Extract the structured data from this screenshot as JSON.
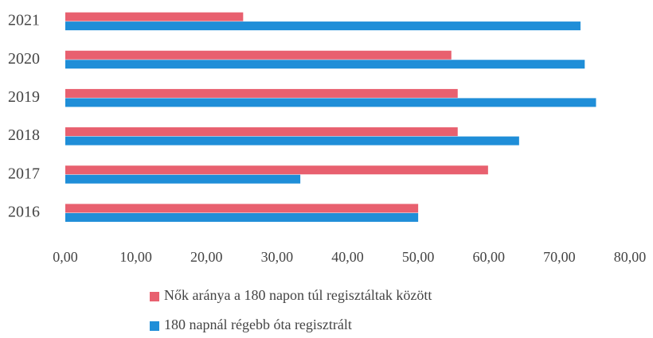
{
  "chart_data": {
    "type": "hbar",
    "categories": [
      "2021",
      "2020",
      "2019",
      "2018",
      "2017",
      "2016"
    ],
    "series": [
      {
        "name": "Nők aránya a 180 napon túl regisztáltak között",
        "color": "#e8606f",
        "values": [
          25.2,
          54.7,
          55.6,
          55.6,
          59.9,
          50.0
        ]
      },
      {
        "name": "180 napnál régebb óta regisztrált",
        "color": "#1f8ed8",
        "values": [
          73.0,
          73.6,
          75.2,
          64.3,
          33.3,
          50.0
        ]
      }
    ],
    "xlim": [
      0,
      80
    ],
    "xticks": [
      {
        "value": 0,
        "label": "0,00"
      },
      {
        "value": 10,
        "label": "10,00"
      },
      {
        "value": 20,
        "label": "20,00"
      },
      {
        "value": 30,
        "label": "30,00"
      },
      {
        "value": 40,
        "label": "40,00"
      },
      {
        "value": 50,
        "label": "50,00"
      },
      {
        "value": 60,
        "label": "60,00"
      },
      {
        "value": 70,
        "label": "70,00"
      },
      {
        "value": 80,
        "label": "80,00"
      }
    ],
    "grid": false
  }
}
